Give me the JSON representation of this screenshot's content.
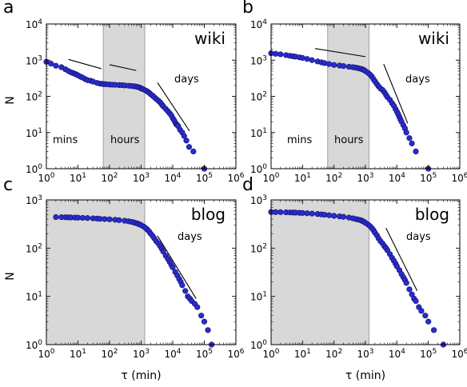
{
  "chart_data": [
    {
      "panel": "a",
      "type": "scatter",
      "label": "wiki",
      "regions": [
        "mins",
        "hours",
        "days"
      ],
      "shaded_x_ranges": [
        [
          63,
          1300
        ]
      ],
      "xlim": [
        1,
        1000000
      ],
      "ylim": [
        1,
        10000
      ],
      "xscale": "log",
      "yscale": "log",
      "xticks": [
        "10^0",
        "10^1",
        "10^2",
        "10^3",
        "10^4",
        "10^5",
        "10^6"
      ],
      "yticks": [
        "10^0",
        "10^1",
        "10^2",
        "10^3",
        "10^4"
      ],
      "ylabel": "N",
      "xlabel": "",
      "guide_lines": [
        [
          [
            5,
            1050
          ],
          [
            55,
            580
          ]
        ],
        [
          [
            100,
            750
          ],
          [
            700,
            520
          ]
        ],
        [
          [
            3300,
            240
          ],
          [
            34000,
            11
          ]
        ]
      ],
      "series": [
        {
          "x": [
            1,
            1.4,
            2,
            3,
            4,
            5,
            6,
            7,
            8,
            9,
            10,
            12,
            14,
            17,
            20,
            25,
            30,
            40,
            50,
            60,
            70,
            80,
            100,
            120,
            150,
            200,
            250,
            300,
            400,
            500,
            600,
            700,
            800,
            900,
            1000,
            1100,
            1200,
            1400,
            1600,
            1800,
            2000,
            2300,
            2600,
            3000,
            3500,
            4000,
            4500,
            5000,
            6000,
            7000,
            8000,
            9000,
            10000,
            11000,
            12000,
            13000,
            14000,
            15000,
            17000,
            20000,
            23000,
            27000,
            33000,
            45000,
            100000
          ],
          "y": [
            900,
            800,
            700,
            640,
            560,
            500,
            460,
            440,
            420,
            400,
            380,
            350,
            330,
            300,
            280,
            270,
            255,
            235,
            225,
            220,
            218,
            215,
            212,
            210,
            208,
            205,
            203,
            200,
            197,
            193,
            190,
            185,
            180,
            175,
            165,
            160,
            155,
            145,
            135,
            125,
            115,
            105,
            95,
            85,
            76,
            68,
            60,
            53,
            45,
            39,
            34,
            30,
            25,
            22,
            19,
            17,
            16,
            15,
            12,
            10,
            8,
            6,
            4,
            3,
            1
          ]
        }
      ]
    },
    {
      "panel": "b",
      "type": "scatter",
      "label": "wiki",
      "regions": [
        "mins",
        "hours",
        "days"
      ],
      "shaded_x_ranges": [
        [
          63,
          1300
        ]
      ],
      "xlim": [
        1,
        1000000
      ],
      "ylim": [
        1,
        10000
      ],
      "xscale": "log",
      "yscale": "log",
      "xticks": [
        "10^0",
        "10^1",
        "10^2",
        "10^3",
        "10^4",
        "10^5",
        "10^6"
      ],
      "yticks": [
        "10^0",
        "10^1",
        "10^2",
        "10^3",
        "10^4"
      ],
      "xlabel": "",
      "guide_lines": [
        [
          [
            25,
            2100
          ],
          [
            1000,
            1250
          ]
        ],
        [
          [
            3800,
            780
          ],
          [
            22000,
            18
          ]
        ]
      ],
      "series": [
        {
          "x": [
            1,
            1.4,
            2,
            3,
            4,
            5,
            6,
            8,
            10,
            14,
            20,
            30,
            40,
            50,
            70,
            100,
            150,
            200,
            300,
            400,
            500,
            600,
            700,
            800,
            900,
            1000,
            1200,
            1400,
            1600,
            1800,
            2000,
            2300,
            2600,
            3000,
            3500,
            4000,
            4500,
            5000,
            6000,
            7000,
            8000,
            9000,
            10000,
            11000,
            12000,
            13000,
            14000,
            16000,
            18000,
            20000,
            25000,
            30000,
            40000,
            100000
          ],
          "y": [
            1550,
            1500,
            1450,
            1380,
            1320,
            1280,
            1250,
            1200,
            1150,
            1080,
            1000,
            920,
            870,
            830,
            780,
            740,
            710,
            690,
            660,
            640,
            620,
            600,
            580,
            560,
            530,
            500,
            450,
            400,
            350,
            300,
            260,
            220,
            190,
            165,
            150,
            130,
            110,
            95,
            80,
            65,
            55,
            45,
            38,
            32,
            27,
            23,
            20,
            16,
            13,
            10,
            7,
            5,
            3,
            1
          ]
        }
      ]
    },
    {
      "panel": "c",
      "type": "scatter",
      "label": "blog",
      "regions": [
        "days"
      ],
      "shaded_x_ranges": [
        [
          1,
          1300
        ]
      ],
      "xlim": [
        1,
        1000000
      ],
      "ylim": [
        1,
        1000
      ],
      "xscale": "log",
      "yscale": "log",
      "xticks": [
        "10^0",
        "10^1",
        "10^2",
        "10^3",
        "10^4",
        "10^5",
        "10^6"
      ],
      "yticks": [
        "10^0",
        "10^1",
        "10^2",
        "10^3"
      ],
      "ylabel": "N",
      "xlabel": "τ (min)",
      "guide_lines": [
        [
          [
            3300,
            180
          ],
          [
            55000,
            9
          ]
        ]
      ],
      "series": [
        {
          "x": [
            2,
            3,
            4,
            5,
            6,
            8,
            10,
            14,
            20,
            30,
            40,
            50,
            70,
            100,
            150,
            200,
            300,
            400,
            500,
            600,
            700,
            800,
            900,
            1000,
            1200,
            1400,
            1600,
            1800,
            2000,
            2300,
            2600,
            3000,
            3500,
            4000,
            4500,
            5000,
            6000,
            7000,
            8000,
            9000,
            10000,
            12000,
            14000,
            16000,
            18000,
            20000,
            25000,
            30000,
            35000,
            40000,
            50000,
            60000,
            80000,
            100000,
            130000,
            170000
          ],
          "y": [
            440,
            438,
            436,
            434,
            432,
            430,
            428,
            425,
            420,
            415,
            410,
            405,
            400,
            395,
            388,
            380,
            370,
            360,
            350,
            340,
            330,
            320,
            310,
            300,
            280,
            260,
            240,
            220,
            200,
            180,
            160,
            140,
            125,
            110,
            97,
            85,
            70,
            60,
            52,
            45,
            40,
            32,
            27,
            23,
            20,
            17,
            13,
            10,
            9,
            8,
            7,
            6,
            4,
            3,
            2,
            1
          ]
        }
      ]
    },
    {
      "panel": "d",
      "type": "scatter",
      "label": "blog",
      "regions": [
        "days"
      ],
      "shaded_x_ranges": [
        [
          1,
          1300
        ]
      ],
      "xlim": [
        1,
        1000000
      ],
      "ylim": [
        1,
        1000
      ],
      "xscale": "log",
      "yscale": "log",
      "xticks": [
        "10^0",
        "10^1",
        "10^2",
        "10^3",
        "10^4",
        "10^5",
        "10^6"
      ],
      "yticks": [
        "10^0",
        "10^1",
        "10^2",
        "10^3"
      ],
      "xlabel": "τ (min)",
      "guide_lines": [
        [
          [
            4500,
            260
          ],
          [
            44000,
            13
          ]
        ]
      ],
      "series": [
        {
          "x": [
            1,
            1.4,
            2,
            3,
            4,
            5,
            6,
            8,
            10,
            14,
            20,
            30,
            40,
            50,
            70,
            100,
            150,
            200,
            300,
            400,
            500,
            600,
            700,
            800,
            900,
            1000,
            1200,
            1400,
            1600,
            1800,
            2000,
            2300,
            2600,
            3000,
            3500,
            4000,
            4500,
            5000,
            6000,
            7000,
            8000,
            9000,
            10000,
            12000,
            14000,
            16000,
            18000,
            20000,
            25000,
            30000,
            35000,
            40000,
            50000,
            60000,
            80000,
            100000,
            150000,
            300000
          ],
          "y": [
            560,
            558,
            556,
            553,
            550,
            547,
            545,
            540,
            535,
            528,
            520,
            510,
            500,
            492,
            480,
            468,
            455,
            445,
            430,
            415,
            400,
            390,
            380,
            365,
            350,
            335,
            310,
            285,
            260,
            235,
            210,
            185,
            160,
            140,
            125,
            110,
            100,
            90,
            75,
            63,
            55,
            48,
            42,
            35,
            29,
            25,
            22,
            19,
            14,
            11,
            9,
            8,
            6,
            5,
            4,
            3,
            2,
            1
          ]
        }
      ]
    }
  ]
}
